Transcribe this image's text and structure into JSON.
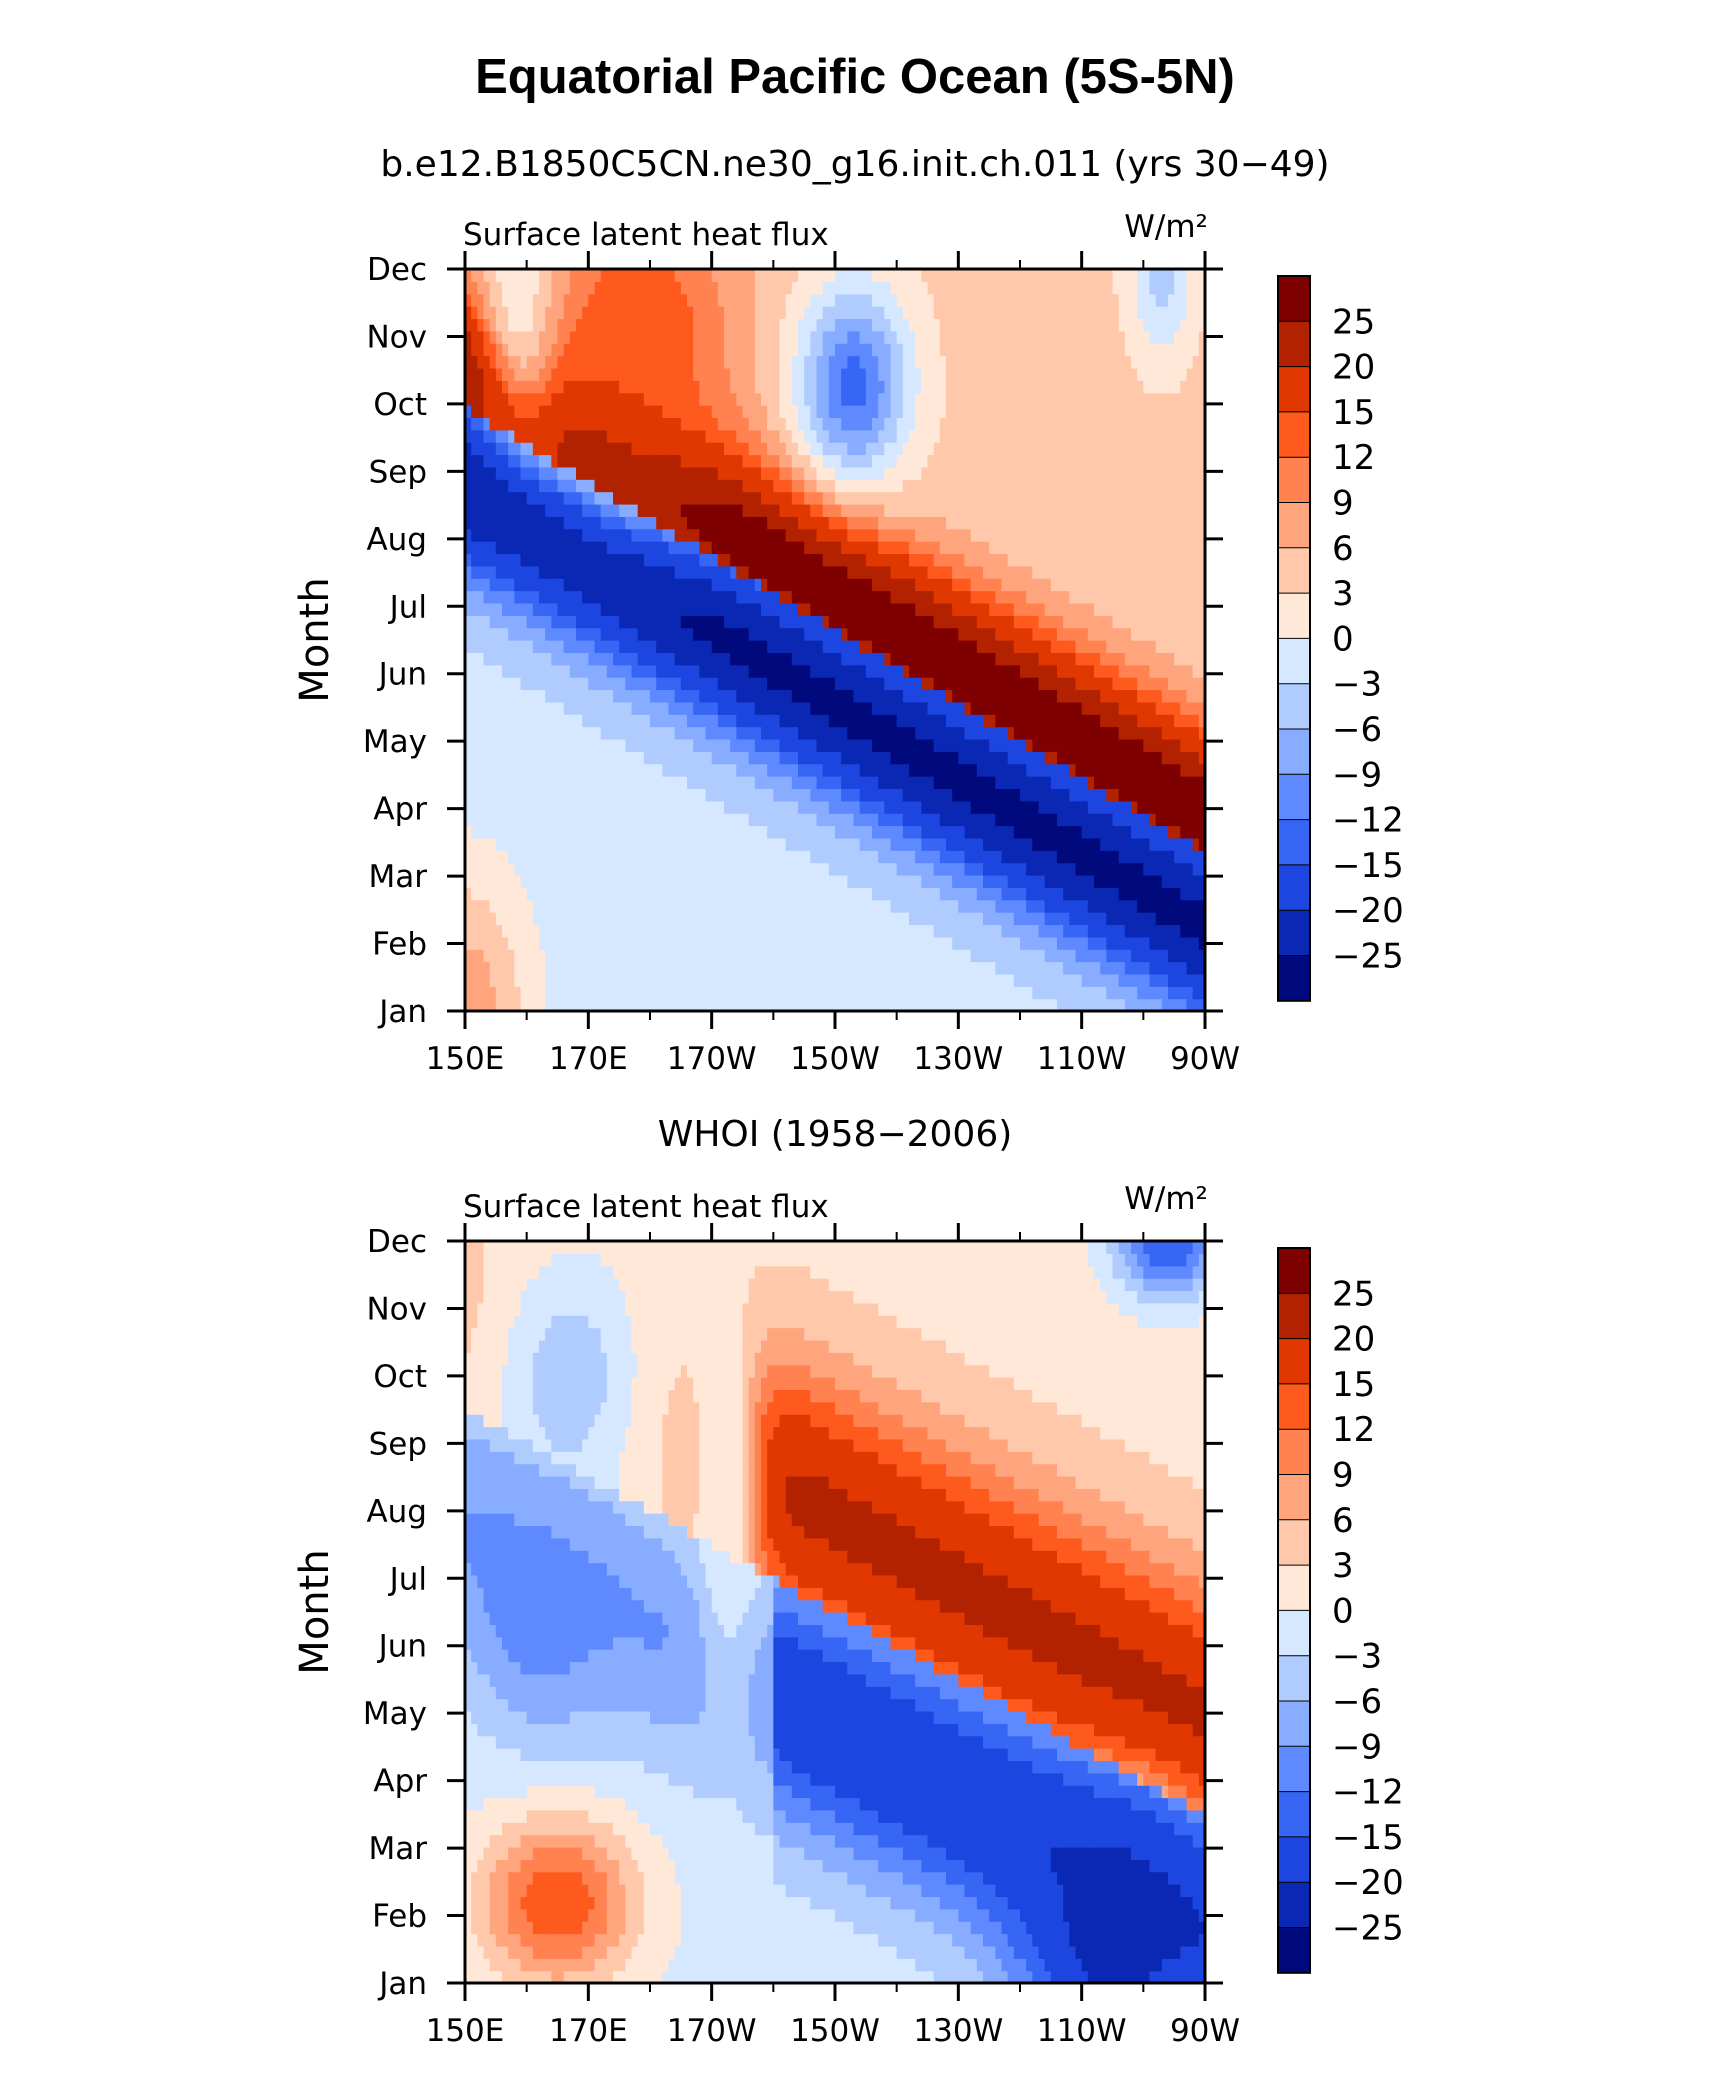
{
  "title": "Equatorial Pacific Ocean (5S-5N)",
  "colorbar_levels": [
    "25",
    "20",
    "15",
    "12",
    "9",
    "6",
    "3",
    "0",
    "−3",
    "−6",
    "−9",
    "−12",
    "−15",
    "−20",
    "−25"
  ],
  "colors": [
    "#7f0000",
    "#b22200",
    "#e03800",
    "#ff5a1e",
    "#ff8250",
    "#ffa57d",
    "#ffc8aa",
    "#ffe8d8",
    "#d6e8ff",
    "#b0ccff",
    "#88acff",
    "#5f8aff",
    "#3766f5",
    "#1c46df",
    "#0a28b4",
    "#000a7d"
  ],
  "chart_data": [
    {
      "type": "heatmap",
      "title": "b.e12.B1850C5CN.ne30_g16.init.ch.011 (yrs 30−49)",
      "left_label": "Surface latent heat flux",
      "units_label": "W/m²",
      "ylabel": "Month",
      "x_ticks": [
        "150E",
        "170E",
        "170W",
        "150W",
        "130W",
        "110W",
        "90W"
      ],
      "y_ticks": [
        "Jan",
        "Feb",
        "Mar",
        "Apr",
        "May",
        "Jun",
        "Jul",
        "Aug",
        "Sep",
        "Oct",
        "Nov",
        "Dec"
      ],
      "x_range": [
        150,
        270
      ],
      "y_range": [
        0,
        11
      ],
      "colorbar_range": [
        -25,
        25
      ],
      "features": [
        {
          "x": 150,
          "y": 0,
          "v": 8,
          "rx": 12,
          "ry": 2.4
        },
        {
          "x": 160,
          "y": 10.6,
          "v": -3,
          "rx": 8,
          "ry": 2.2
        },
        {
          "x": 178,
          "y": 10.0,
          "v": 15,
          "rx": 18,
          "ry": 2.5
        },
        {
          "x": 213,
          "y": 9.3,
          "v": -13,
          "rx": 10,
          "ry": 1.6
        },
        {
          "x": 263,
          "y": 11,
          "v": -4,
          "rx": 6,
          "ry": 1.5
        }
      ]
    },
    {
      "type": "heatmap",
      "title": "WHOI (1958−2006)",
      "left_label": "Surface latent heat flux",
      "units_label": "W/m²",
      "ylabel": "Month",
      "x_ticks": [
        "150E",
        "170E",
        "170W",
        "150W",
        "130W",
        "110W",
        "90W"
      ],
      "y_ticks": [
        "Jan",
        "Feb",
        "Mar",
        "Apr",
        "May",
        "Jun",
        "Jul",
        "Aug",
        "Sep",
        "Oct",
        "Nov",
        "Dec"
      ],
      "x_range": [
        150,
        270
      ],
      "y_range": [
        0,
        11
      ],
      "colorbar_range": [
        -25,
        25
      ],
      "features": [
        {
          "x": 165,
          "y": 1.2,
          "v": 15,
          "rx": 14,
          "ry": 1.4
        },
        {
          "x": 162,
          "y": 5.6,
          "v": -11,
          "rx": 12,
          "ry": 2.0
        },
        {
          "x": 167,
          "y": 9.0,
          "v": -5,
          "rx": 14,
          "ry": 2.2
        },
        {
          "x": 193,
          "y": 8.0,
          "v": 1,
          "rx": 6,
          "ry": 4.5
        },
        {
          "x": 255,
          "y": 0.6,
          "v": -22,
          "rx": 16,
          "ry": 2.0
        },
        {
          "x": 264,
          "y": 11,
          "v": -15,
          "rx": 10,
          "ry": 1.0
        }
      ]
    }
  ]
}
